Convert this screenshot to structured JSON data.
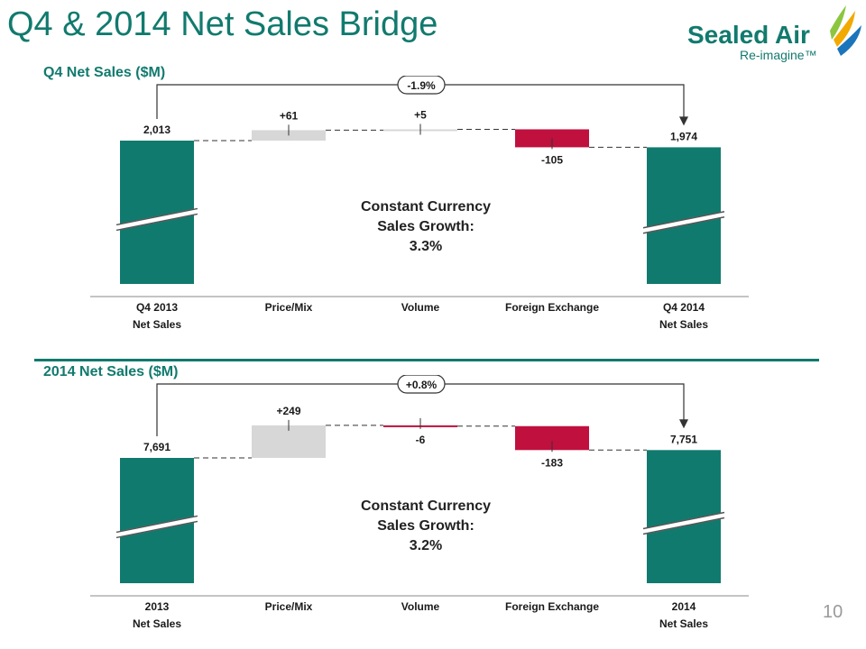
{
  "title": "Q4 & 2014 Net Sales Bridge",
  "logo": {
    "brand": "Sealed Air",
    "tagline": "Re-imagine™"
  },
  "page_number": "10",
  "colors": {
    "teal": "#117a6e",
    "gray": "#d7d7d7",
    "red": "#c0103e",
    "arrow": "#333333"
  },
  "sections": [
    {
      "label": "Q4 Net Sales ($M)"
    },
    {
      "label": "2014 Net Sales ($M)"
    }
  ],
  "chart_data": [
    {
      "type": "bar",
      "subtype": "waterfall",
      "title": "Q4 Net Sales ($M)",
      "categories": [
        [
          "Q4 2013",
          "Net Sales"
        ],
        [
          "Price/Mix"
        ],
        [
          "Volume"
        ],
        [
          "Foreign Exchange"
        ],
        [
          "Q4 2014",
          "Net Sales"
        ]
      ],
      "values": [
        2013,
        61,
        5,
        -105,
        1974
      ],
      "labels": [
        "2,013",
        "+61",
        "+5",
        "-105",
        "1,974"
      ],
      "bar_kinds": [
        "total",
        "increase",
        "increase",
        "decrease",
        "total"
      ],
      "axis_break": true,
      "change_label": "-1.9%",
      "ccg_lines": [
        "Constant Currency",
        "Sales Growth:",
        "3.3%"
      ]
    },
    {
      "type": "bar",
      "subtype": "waterfall",
      "title": "2014 Net Sales ($M)",
      "categories": [
        [
          "2013",
          "Net Sales"
        ],
        [
          "Price/Mix"
        ],
        [
          "Volume"
        ],
        [
          "Foreign Exchange"
        ],
        [
          "2014",
          "Net Sales"
        ]
      ],
      "values": [
        7691,
        249,
        -6,
        -183,
        7751
      ],
      "labels": [
        "7,691",
        "+249",
        "-6",
        "-183",
        "7,751"
      ],
      "bar_kinds": [
        "total",
        "increase",
        "decrease",
        "decrease",
        "total"
      ],
      "axis_break": true,
      "change_label": "+0.8%",
      "ccg_lines": [
        "Constant Currency",
        "Sales Growth:",
        "3.2%"
      ]
    }
  ]
}
